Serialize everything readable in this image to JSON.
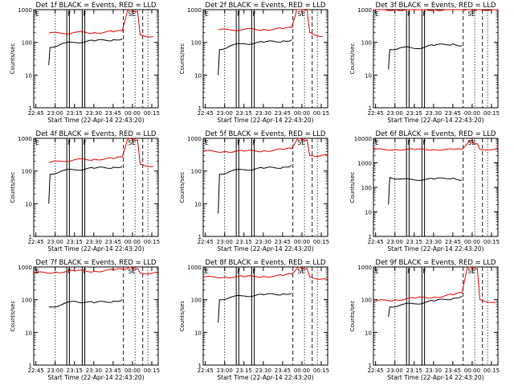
{
  "figure": {
    "ylabel": "Counts/sec",
    "xlabel": "Start Time (22-Apr-14 22:43:20)",
    "colors": {
      "events": "#000000",
      "lld": "#e00000",
      "marker": "#000000"
    }
  },
  "chart_data": [
    {
      "type": "line",
      "title": "Det 1f BLACK = Events, RED = LLD",
      "xlabel": "Start Time (22-Apr-14 22:43:20)",
      "ylabel": "Counts/sec",
      "yscale": "log",
      "ylim": [
        1,
        1000
      ],
      "xlim": [
        "22:43:20",
        "00:20:00"
      ],
      "xticks": [
        "22:45",
        "23:00",
        "23:15",
        "23:30",
        "23:45",
        "00:00",
        "00:15"
      ],
      "yticks": [
        "1",
        "10",
        "100",
        "1000"
      ],
      "markers": [
        "E",
        "F",
        "F",
        "SE"
      ],
      "series": [
        {
          "name": "Events",
          "color": "#000000",
          "x": [
            "22:55",
            "22:56",
            "23:05",
            "23:15",
            "23:30",
            "23:45",
            "23:52"
          ],
          "values": [
            20,
            70,
            90,
            100,
            110,
            120,
            130
          ]
        },
        {
          "name": "LLD",
          "color": "#e00000",
          "x": [
            "22:55",
            "23:05",
            "23:15",
            "23:30",
            "23:45",
            "23:52",
            "23:56",
            "23:58",
            "00:04",
            "00:06",
            "00:16"
          ],
          "values": [
            190,
            190,
            200,
            200,
            210,
            220,
            900,
            1000,
            900,
            170,
            150
          ]
        }
      ]
    },
    {
      "type": "line",
      "title": "Det 2f BLACK = Events, RED = LLD",
      "xlabel": "Start Time (22-Apr-14 22:43:20)",
      "ylabel": "Counts/sec",
      "yscale": "log",
      "ylim": [
        1,
        1000
      ],
      "xlim": [
        "22:43:20",
        "00:20:00"
      ],
      "xticks": [
        "22:45",
        "23:00",
        "23:15",
        "23:30",
        "23:45",
        "00:00",
        "00:15"
      ],
      "yticks": [
        "1",
        "10",
        "100",
        "1000"
      ],
      "markers": [
        "E",
        "F",
        "F",
        "SE"
      ],
      "series": [
        {
          "name": "Events",
          "color": "#000000",
          "x": [
            "22:55",
            "22:56",
            "23:05",
            "23:15",
            "23:30",
            "23:45",
            "23:52"
          ],
          "values": [
            10,
            60,
            80,
            90,
            100,
            110,
            120
          ]
        },
        {
          "name": "LLD",
          "color": "#e00000",
          "x": [
            "22:55",
            "23:05",
            "23:15",
            "23:30",
            "23:45",
            "23:52",
            "23:56",
            "23:58",
            "00:04",
            "00:06",
            "00:16"
          ],
          "values": [
            240,
            240,
            250,
            250,
            260,
            280,
            1000,
            1100,
            1000,
            200,
            150
          ]
        }
      ]
    },
    {
      "type": "line",
      "title": "Det 3f BLACK = Events, RED = LLD",
      "xlabel": "Start Time (22-Apr-14 22:43:20)",
      "ylabel": "Counts/sec",
      "yscale": "log",
      "ylim": [
        1,
        1000
      ],
      "xlim": [
        "22:43:20",
        "00:20:00"
      ],
      "xticks": [
        "22:45",
        "23:00",
        "23:15",
        "23:30",
        "23:45",
        "00:00",
        "00:15"
      ],
      "yticks": [
        "1",
        "10",
        "100",
        "1000"
      ],
      "markers": [
        "E",
        "F",
        "F",
        "SE"
      ],
      "series": [
        {
          "name": "Events",
          "color": "#000000",
          "x": [
            "22:55",
            "22:56",
            "23:05",
            "23:15",
            "23:30",
            "23:45",
            "23:52"
          ],
          "values": [
            15,
            60,
            70,
            65,
            80,
            90,
            80
          ]
        },
        {
          "name": "LLD",
          "color": "#e00000",
          "x": [
            "22:43",
            "23:00",
            "23:15",
            "23:30",
            "23:45",
            "23:52",
            "23:56",
            "23:58",
            "00:04",
            "00:06",
            "00:20"
          ],
          "values": [
            1000,
            1000,
            1000,
            1000,
            1000,
            1000,
            1000,
            1000,
            1000,
            1000,
            1000
          ]
        }
      ]
    },
    {
      "type": "line",
      "title": "Det 4f BLACK = Events, RED = LLD",
      "xlabel": "Start Time (22-Apr-14 22:43:20)",
      "ylabel": "Counts/sec",
      "yscale": "log",
      "ylim": [
        1,
        1000
      ],
      "xlim": [
        "22:43:20",
        "00:20:00"
      ],
      "xticks": [
        "22:45",
        "23:00",
        "23:15",
        "23:30",
        "23:45",
        "00:00",
        "00:15"
      ],
      "yticks": [
        "1",
        "10",
        "100",
        "1000"
      ],
      "markers": [
        "E",
        "F",
        "F",
        "SE"
      ],
      "series": [
        {
          "name": "Events",
          "color": "#000000",
          "x": [
            "22:55",
            "22:56",
            "23:05",
            "23:15",
            "23:30",
            "23:45",
            "23:52"
          ],
          "values": [
            10,
            80,
            100,
            110,
            120,
            130,
            140
          ]
        },
        {
          "name": "LLD",
          "color": "#e00000",
          "x": [
            "22:55",
            "23:05",
            "23:15",
            "23:30",
            "23:45",
            "23:52",
            "23:56",
            "23:58",
            "00:04",
            "00:06",
            "00:16"
          ],
          "values": [
            180,
            200,
            220,
            230,
            240,
            260,
            900,
            1000,
            900,
            160,
            140
          ]
        }
      ]
    },
    {
      "type": "line",
      "title": "Det 5f BLACK = Events, RED = LLD",
      "xlabel": "Start Time (22-Apr-14 22:43:20)",
      "ylabel": "Counts/sec",
      "yscale": "log",
      "ylim": [
        1,
        1000
      ],
      "xlim": [
        "22:43:20",
        "00:20:00"
      ],
      "xticks": [
        "22:45",
        "23:00",
        "23:15",
        "23:30",
        "23:45",
        "00:00",
        "00:15"
      ],
      "yticks": [
        "1",
        "10",
        "100",
        "1000"
      ],
      "markers": [
        "E",
        "F",
        "F",
        "SE"
      ],
      "series": [
        {
          "name": "Events",
          "color": "#000000",
          "x": [
            "22:55",
            "22:56",
            "23:05",
            "23:15",
            "23:30",
            "23:45",
            "23:52"
          ],
          "values": [
            5,
            80,
            100,
            110,
            120,
            130,
            150
          ]
        },
        {
          "name": "LLD",
          "color": "#e00000",
          "x": [
            "22:43",
            "23:00",
            "23:15",
            "23:30",
            "23:45",
            "23:52",
            "23:56",
            "23:58",
            "00:04",
            "00:06",
            "00:20"
          ],
          "values": [
            400,
            400,
            400,
            420,
            450,
            480,
            900,
            1000,
            900,
            300,
            300
          ]
        }
      ]
    },
    {
      "type": "line",
      "title": "Det 6f BLACK = Events, RED = LLD",
      "xlabel": "Start Time (22-Apr-14 22:43:20)",
      "ylabel": "Counts/sec",
      "yscale": "log",
      "ylim": [
        1,
        10000
      ],
      "xlim": [
        "22:43:20",
        "00:20:00"
      ],
      "xticks": [
        "22:45",
        "23:00",
        "23:15",
        "23:30",
        "23:45",
        "00:00",
        "00:15"
      ],
      "yticks": [
        "1",
        "10",
        "100",
        "1000",
        "10000"
      ],
      "markers": [
        "E",
        "F",
        "F",
        "SE"
      ],
      "series": [
        {
          "name": "Events",
          "color": "#000000",
          "x": [
            "22:55",
            "22:56",
            "23:05",
            "23:15",
            "23:30",
            "23:45",
            "23:52"
          ],
          "values": [
            20,
            250,
            220,
            200,
            220,
            240,
            200
          ]
        },
        {
          "name": "LLD",
          "color": "#e00000",
          "x": [
            "22:43",
            "23:00",
            "23:15",
            "23:30",
            "23:45",
            "23:52",
            "23:56",
            "23:58",
            "00:04",
            "00:06",
            "00:20"
          ],
          "values": [
            3500,
            3500,
            3500,
            3500,
            3500,
            3500,
            6000,
            8000,
            6000,
            3500,
            3500
          ]
        }
      ]
    },
    {
      "type": "line",
      "title": "Det 7f BLACK = Events, RED = LLD",
      "xlabel": "Start Time (22-Apr-14 22:43:20)",
      "ylabel": "Counts/sec",
      "yscale": "log",
      "ylim": [
        1,
        1000
      ],
      "xlim": [
        "22:43:20",
        "00:20:00"
      ],
      "xticks": [
        "22:45",
        "23:00",
        "23:15",
        "23:30",
        "23:45",
        "00:00",
        "00:15"
      ],
      "yticks": [
        "1",
        "10",
        "100",
        "1000"
      ],
      "markers": [
        "E",
        "F",
        "F",
        "SE"
      ],
      "series": [
        {
          "name": "Events",
          "color": "#000000",
          "x": [
            "22:55",
            "22:56",
            "23:05",
            "23:15",
            "23:30",
            "23:45",
            "23:52"
          ],
          "values": [
            60,
            60,
            70,
            90,
            80,
            90,
            100
          ]
        },
        {
          "name": "LLD",
          "color": "#e00000",
          "x": [
            "22:43",
            "23:00",
            "23:15",
            "23:30",
            "23:45",
            "23:52",
            "23:56",
            "23:58",
            "00:04",
            "00:06",
            "00:20"
          ],
          "values": [
            650,
            700,
            750,
            750,
            800,
            850,
            900,
            1000,
            900,
            650,
            650
          ]
        }
      ]
    },
    {
      "type": "line",
      "title": "Det 8f BLACK = Events, RED = LLD",
      "xlabel": "Start Time (22-Apr-14 22:43:20)",
      "ylabel": "Counts/sec",
      "yscale": "log",
      "ylim": [
        1,
        1000
      ],
      "xlim": [
        "22:43:20",
        "00:20:00"
      ],
      "xticks": [
        "22:45",
        "23:00",
        "23:15",
        "23:30",
        "23:45",
        "00:00",
        "00:15"
      ],
      "yticks": [
        "1",
        "10",
        "100",
        "1000"
      ],
      "markers": [
        "E",
        "F",
        "F",
        "SE"
      ],
      "series": [
        {
          "name": "Events",
          "color": "#000000",
          "x": [
            "22:55",
            "22:56",
            "23:05",
            "23:15",
            "23:30",
            "23:45",
            "23:52"
          ],
          "values": [
            20,
            100,
            120,
            130,
            140,
            150,
            160
          ]
        },
        {
          "name": "LLD",
          "color": "#e00000",
          "x": [
            "22:43",
            "23:00",
            "23:15",
            "23:30",
            "23:45",
            "23:52",
            "23:56",
            "23:58",
            "00:04",
            "00:06",
            "00:20"
          ],
          "values": [
            480,
            500,
            500,
            520,
            540,
            600,
            900,
            1000,
            900,
            500,
            400
          ]
        }
      ]
    },
    {
      "type": "line",
      "title": "Det 9f BLACK = Events, RED = LLD",
      "xlabel": "Start Time (22-Apr-14 22:43:20)",
      "ylabel": "Counts/sec",
      "yscale": "log",
      "ylim": [
        1,
        1000
      ],
      "xlim": [
        "22:43:20",
        "00:20:00"
      ],
      "xticks": [
        "22:45",
        "23:00",
        "23:15",
        "23:30",
        "23:45",
        "00:00",
        "00:15"
      ],
      "yticks": [
        "1",
        "10",
        "100",
        "1000"
      ],
      "markers": [
        "E",
        "F",
        "F",
        "SE"
      ],
      "series": [
        {
          "name": "Events",
          "color": "#000000",
          "x": [
            "22:55",
            "22:56",
            "23:05",
            "23:15",
            "23:30",
            "23:45",
            "23:52"
          ],
          "values": [
            30,
            60,
            70,
            75,
            90,
            110,
            130
          ]
        },
        {
          "name": "LLD",
          "color": "#e00000",
          "x": [
            "22:45",
            "23:00",
            "23:15",
            "23:30",
            "23:45",
            "23:52",
            "23:56",
            "23:58",
            "00:04",
            "00:06",
            "00:18"
          ],
          "values": [
            90,
            100,
            110,
            120,
            140,
            160,
            900,
            1000,
            900,
            100,
            80
          ]
        }
      ]
    }
  ]
}
